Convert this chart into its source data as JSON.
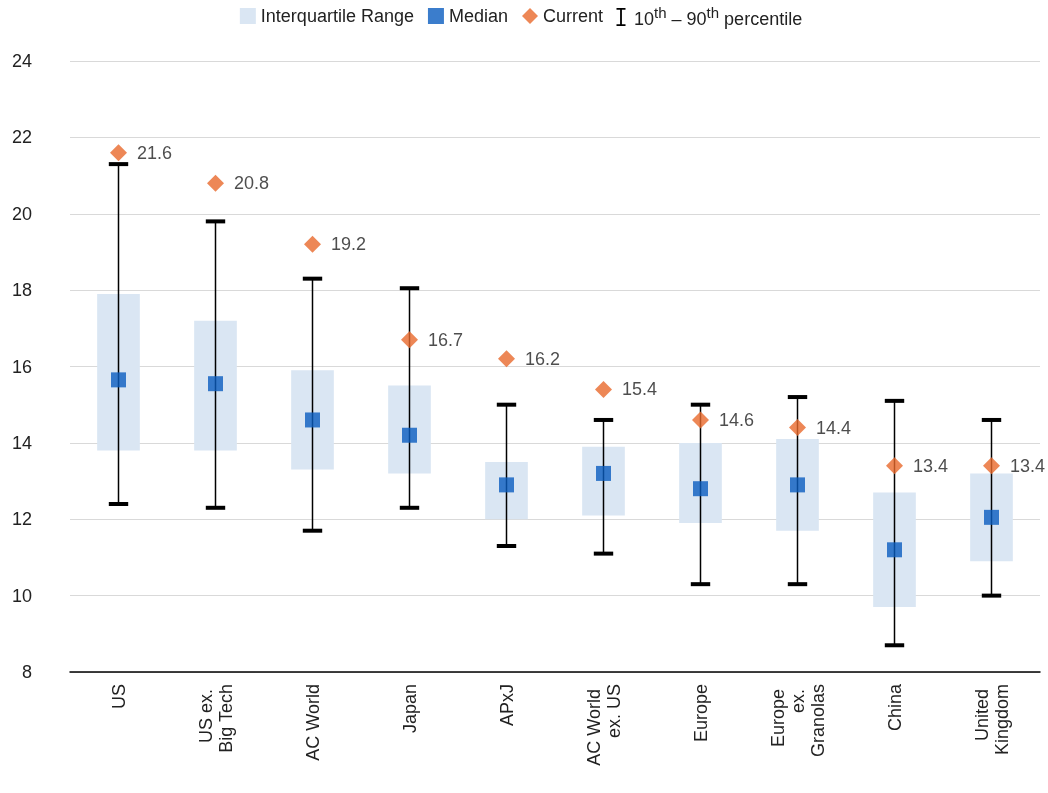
{
  "chart_data": {
    "type": "scatter",
    "categories": [
      "US",
      "US ex. Big Tech",
      "AC World",
      "Japan",
      "APxJ",
      "AC World ex. US",
      "Europe",
      "Europe ex. Granolas",
      "China",
      "United Kingdom"
    ],
    "series": [
      {
        "type": "bar",
        "name": "Interquartile Range",
        "color": "#dae6f3",
        "base": [
          13.8,
          13.8,
          13.3,
          13.2,
          12.0,
          12.1,
          11.9,
          11.7,
          9.7,
          10.9
        ],
        "values": [
          4.1,
          3.4,
          2.6,
          2.3,
          1.5,
          1.8,
          2.1,
          2.4,
          3.0,
          2.3
        ]
      },
      {
        "name": "Median",
        "color": "#0a5cbf",
        "marker": "square",
        "values": [
          15.65,
          15.55,
          14.6,
          14.2,
          12.9,
          13.2,
          12.8,
          12.9,
          11.2,
          12.05
        ],
        "errors": [
          [
            12.4,
            21.3
          ],
          [
            12.3,
            19.8
          ],
          [
            11.7,
            18.3
          ],
          [
            12.3,
            18.05
          ],
          [
            11.3,
            15.0
          ],
          [
            11.1,
            14.6
          ],
          [
            10.3,
            15.0
          ],
          [
            10.3,
            15.2
          ],
          [
            8.7,
            15.1
          ],
          [
            10.0,
            14.6
          ]
        ]
      },
      {
        "name": "Current",
        "color": "#e8692c",
        "marker": "diamond",
        "values": [
          21.6,
          20.8,
          19.2,
          16.7,
          16.2,
          15.4,
          14.6,
          14.4,
          13.4,
          13.4
        ],
        "value_labels": [
          "21.6",
          "20.8",
          "19.2",
          "16.7",
          "16.2",
          "15.4",
          "14.6",
          "14.4",
          "13.4",
          "13.4"
        ]
      }
    ],
    "annotations": [
      "10$^{th}$ – 90$^{th}$ percentile"
    ],
    "ylim": [
      8,
      24
    ],
    "yticks": [
      8,
      10,
      12,
      14,
      16,
      18,
      20,
      22,
      24
    ],
    "grid": "y",
    "legend": "top"
  }
}
